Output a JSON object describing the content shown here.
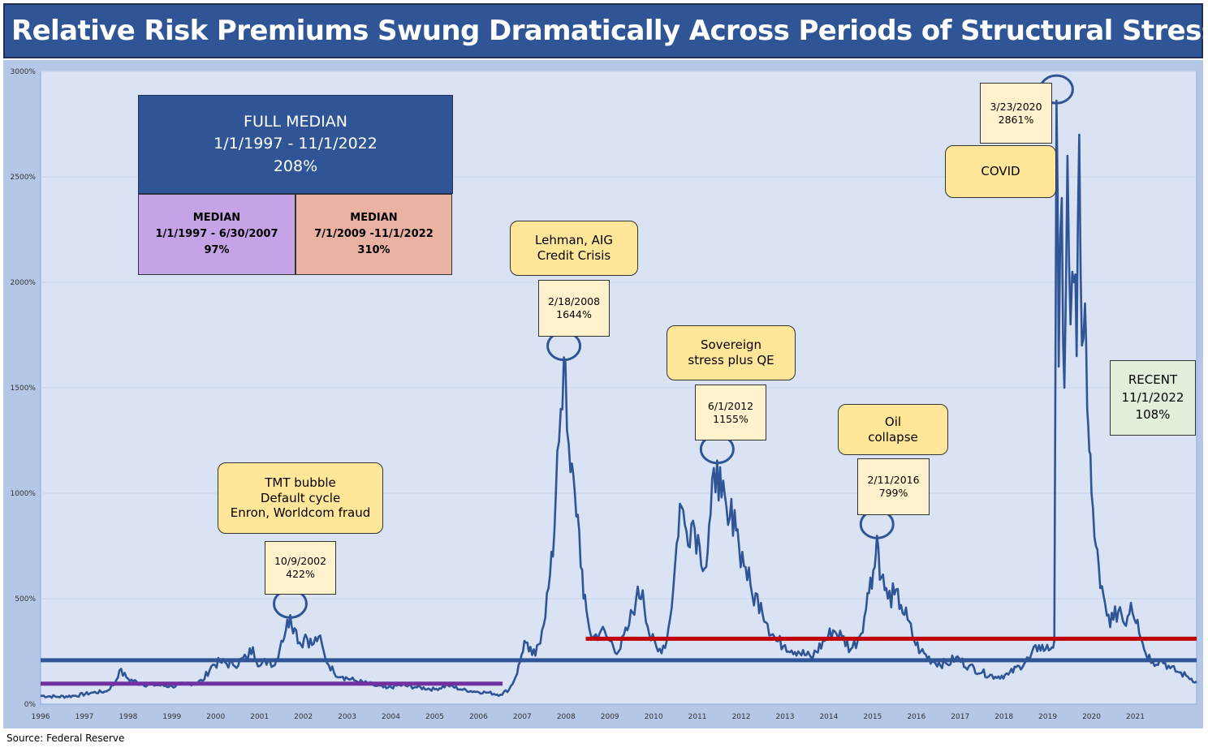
{
  "title": "Relative Risk Premiums Swung Dramatically Across Periods of Structural Stress",
  "source": "Source: Federal Reserve",
  "full_median": {
    "line1": "FULL MEDIAN",
    "line2": "1/1/1997 - 11/1/2022",
    "line3": "208%"
  },
  "median_early": {
    "line1": "MEDIAN",
    "line2": "1/1/1997 - 6/30/2007",
    "line3": "97%"
  },
  "median_late": {
    "line1": "MEDIAN",
    "line2": "7/1/2009 -11/1/2022",
    "line3": "310%"
  },
  "annotations": {
    "tmt": {
      "line1": "TMT bubble",
      "line2": "Default cycle",
      "line3": "Enron, Worldcom fraud",
      "date": "10/9/2002",
      "value": "422%"
    },
    "lehman": {
      "line1": "Lehman, AIG",
      "line2": "Credit Crisis",
      "date": "2/18/2008",
      "value": "1644%"
    },
    "sovereign": {
      "line1": "Sovereign",
      "line2": "stress plus QE",
      "date": "6/1/2012",
      "value": "1155%"
    },
    "oil": {
      "line1": "Oil",
      "line2": "collapse",
      "date": "2/11/2016",
      "value": "799%"
    },
    "covid": {
      "line1": "COVID",
      "date": "3/23/2020",
      "value": "2861%"
    },
    "recent": {
      "line1": "RECENT",
      "line2": "11/1/2022",
      "line3": "108%"
    }
  },
  "colors": {
    "title_bg": "#2f5597",
    "frame_bg": "#b4c7e7",
    "plot_bg": "#dae3f3",
    "series": "#2f5597",
    "full_median_line": "#2f5597",
    "early_median_line": "#7030a0",
    "late_median_line": "#c00000",
    "callout_fill": "#ffe699",
    "datebox_fill": "#fff2cc",
    "recent_fill": "#e2efda"
  },
  "chart_data": {
    "type": "line",
    "y_tick_labels": [
      "0%",
      "500%",
      "1000%",
      "1500%",
      "2000%",
      "2500%",
      "3000%"
    ],
    "ylim": [
      0,
      3000
    ],
    "x_tick_labels": [
      "1996",
      "1997",
      "1998",
      "1999",
      "2000",
      "2001",
      "2002",
      "2003",
      "2004",
      "2005",
      "2006",
      "2007",
      "2008",
      "2009",
      "2010",
      "2011",
      "2012",
      "2013",
      "2014",
      "2015",
      "2016",
      "2017",
      "2018",
      "2019",
      "2020",
      "2021"
    ],
    "xlim": [
      1996.0,
      2022.4
    ],
    "grid": "horizontal",
    "median_lines": [
      {
        "value": 208,
        "x_start": 1996.0,
        "x_end": 2022.4
      },
      {
        "value": 97,
        "x_start": 1996.0,
        "x_end": 2006.55
      },
      {
        "value": 310,
        "x_start": 2008.45,
        "x_end": 2022.4
      }
    ],
    "peaks": [
      {
        "x": 2001.7,
        "value": 422
      },
      {
        "x": 2007.95,
        "value": 1644
      },
      {
        "x": 2011.45,
        "value": 1155
      },
      {
        "x": 2015.1,
        "value": 799
      },
      {
        "x": 2019.2,
        "value": 2861
      }
    ],
    "series_points": [
      [
        1996.0,
        40
      ],
      [
        1996.4,
        35
      ],
      [
        1996.8,
        40
      ],
      [
        1997.2,
        55
      ],
      [
        1997.5,
        60
      ],
      [
        1997.7,
        100
      ],
      [
        1997.8,
        160
      ],
      [
        1998.0,
        120
      ],
      [
        1998.3,
        95
      ],
      [
        1998.7,
        90
      ],
      [
        1999.0,
        85
      ],
      [
        1999.3,
        95
      ],
      [
        1999.7,
        110
      ],
      [
        1999.9,
        180
      ],
      [
        2000.1,
        200
      ],
      [
        2000.4,
        185
      ],
      [
        2000.7,
        220
      ],
      [
        2000.85,
        270
      ],
      [
        2001.0,
        180
      ],
      [
        2001.2,
        210
      ],
      [
        2001.35,
        185
      ],
      [
        2001.5,
        300
      ],
      [
        2001.6,
        350
      ],
      [
        2001.7,
        422
      ],
      [
        2001.8,
        360
      ],
      [
        2001.95,
        280
      ],
      [
        2002.05,
        330
      ],
      [
        2002.2,
        280
      ],
      [
        2002.35,
        320
      ],
      [
        2002.5,
        220
      ],
      [
        2002.7,
        150
      ],
      [
        2002.9,
        130
      ],
      [
        2003.2,
        110
      ],
      [
        2003.6,
        90
      ],
      [
        2003.9,
        75
      ],
      [
        2004.2,
        90
      ],
      [
        2004.6,
        80
      ],
      [
        2005.0,
        70
      ],
      [
        2005.3,
        90
      ],
      [
        2005.6,
        70
      ],
      [
        2005.9,
        60
      ],
      [
        2006.2,
        55
      ],
      [
        2006.5,
        45
      ],
      [
        2006.7,
        70
      ],
      [
        2006.85,
        130
      ],
      [
        2006.95,
        200
      ],
      [
        2007.05,
        300
      ],
      [
        2007.15,
        250
      ],
      [
        2007.3,
        230
      ],
      [
        2007.45,
        350
      ],
      [
        2007.6,
        550
      ],
      [
        2007.7,
        700
      ],
      [
        2007.8,
        1200
      ],
      [
        2007.88,
        1400
      ],
      [
        2007.95,
        1644
      ],
      [
        2008.02,
        1300
      ],
      [
        2008.1,
        1100
      ],
      [
        2008.2,
        1000
      ],
      [
        2008.3,
        820
      ],
      [
        2008.4,
        500
      ],
      [
        2008.5,
        400
      ],
      [
        2008.6,
        310
      ],
      [
        2008.8,
        350
      ],
      [
        2009.0,
        300
      ],
      [
        2009.2,
        250
      ],
      [
        2009.4,
        350
      ],
      [
        2009.6,
        500
      ],
      [
        2009.75,
        540
      ],
      [
        2009.9,
        330
      ],
      [
        2010.1,
        250
      ],
      [
        2010.3,
        300
      ],
      [
        2010.45,
        550
      ],
      [
        2010.6,
        950
      ],
      [
        2010.75,
        820
      ],
      [
        2010.9,
        870
      ],
      [
        2011.05,
        750
      ],
      [
        2011.2,
        650
      ],
      [
        2011.3,
        900
      ],
      [
        2011.45,
        1155
      ],
      [
        2011.55,
        980
      ],
      [
        2011.7,
        850
      ],
      [
        2011.85,
        920
      ],
      [
        2011.95,
        750
      ],
      [
        2012.1,
        650
      ],
      [
        2012.25,
        520
      ],
      [
        2012.45,
        480
      ],
      [
        2012.6,
        380
      ],
      [
        2012.8,
        300
      ],
      [
        2013.0,
        280
      ],
      [
        2013.3,
        250
      ],
      [
        2013.6,
        220
      ],
      [
        2013.9,
        300
      ],
      [
        2014.1,
        350
      ],
      [
        2014.3,
        320
      ],
      [
        2014.5,
        260
      ],
      [
        2014.7,
        320
      ],
      [
        2014.85,
        450
      ],
      [
        2014.95,
        600
      ],
      [
        2015.05,
        650
      ],
      [
        2015.1,
        799
      ],
      [
        2015.2,
        600
      ],
      [
        2015.35,
        500
      ],
      [
        2015.5,
        520
      ],
      [
        2015.65,
        470
      ],
      [
        2015.8,
        400
      ],
      [
        2015.95,
        300
      ],
      [
        2016.1,
        250
      ],
      [
        2016.4,
        200
      ],
      [
        2016.7,
        190
      ],
      [
        2016.9,
        220
      ],
      [
        2017.2,
        180
      ],
      [
        2017.5,
        150
      ],
      [
        2017.8,
        130
      ],
      [
        2018.1,
        140
      ],
      [
        2018.35,
        180
      ],
      [
        2018.6,
        220
      ],
      [
        2018.8,
        280
      ],
      [
        2018.95,
        260
      ],
      [
        2019.1,
        270
      ],
      [
        2019.15,
        300
      ],
      [
        2019.2,
        2861
      ],
      [
        2019.25,
        1600
      ],
      [
        2019.32,
        2400
      ],
      [
        2019.38,
        1500
      ],
      [
        2019.45,
        2600
      ],
      [
        2019.52,
        1800
      ],
      [
        2019.6,
        2000
      ],
      [
        2019.66,
        1650
      ],
      [
        2019.72,
        2700
      ],
      [
        2019.78,
        1700
      ],
      [
        2019.85,
        1900
      ],
      [
        2019.9,
        1400
      ],
      [
        2019.95,
        1200
      ],
      [
        2020.0,
        1000
      ],
      [
        2020.1,
        750
      ],
      [
        2020.2,
        550
      ],
      [
        2020.35,
        420
      ],
      [
        2020.5,
        400
      ],
      [
        2020.65,
        460
      ],
      [
        2020.75,
        380
      ],
      [
        2020.9,
        480
      ],
      [
        2021.05,
        400
      ],
      [
        2021.2,
        260
      ],
      [
        2021.4,
        200
      ],
      [
        2021.6,
        210
      ],
      [
        2021.8,
        170
      ],
      [
        2022.0,
        150
      ],
      [
        2022.2,
        130
      ],
      [
        2022.4,
        108
      ]
    ]
  }
}
